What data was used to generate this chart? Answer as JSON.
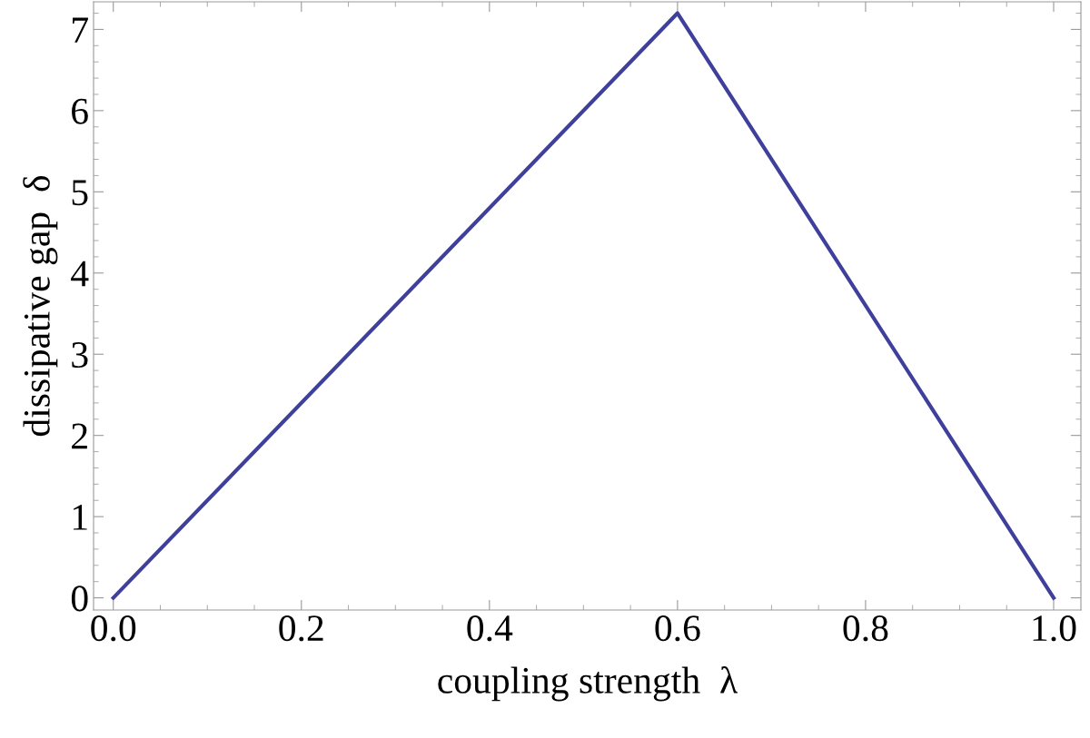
{
  "chart_data": {
    "type": "line",
    "xlabel": "coupling strength  λ",
    "ylabel": "dissipative gap  δ",
    "x": [
      0.0,
      0.6,
      1.0
    ],
    "series": [
      {
        "color": "#3f3f9c",
        "values": [
          0.0,
          7.2,
          0.0
        ]
      }
    ],
    "xlim": [
      -0.021,
      1.029
    ],
    "ylim": [
      -0.15,
      7.34
    ],
    "xticks": [
      {
        "value": 0.0,
        "label": "0.0"
      },
      0.2,
      0.4,
      0.6,
      0.8,
      {
        "value": 1.0,
        "label": "1.0"
      }
    ],
    "yticks": [
      0,
      1,
      2,
      3,
      4,
      5,
      6,
      7
    ],
    "grid": false,
    "legend": false,
    "marker": "none",
    "line_style": "solid"
  }
}
